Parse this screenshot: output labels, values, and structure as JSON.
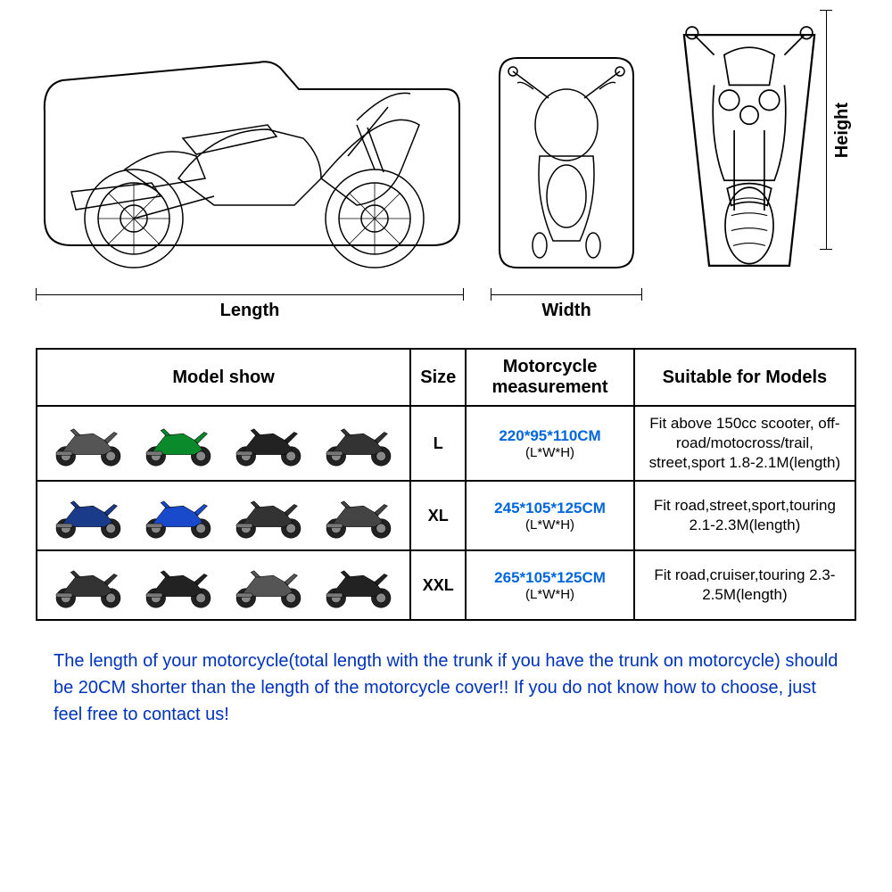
{
  "dimension_labels": {
    "length": "Length",
    "width": "Width",
    "height": "Height"
  },
  "table": {
    "headers": {
      "model": "Model show",
      "size": "Size",
      "measurement": "Motorcycle measurement",
      "suitable": "Suitable for Models"
    },
    "measurement_sub": "(L*W*H)",
    "rows": [
      {
        "size": "L",
        "measurement": "220*95*110CM",
        "suitable": "Fit above 150cc scooter, off-road/motocross/trail, street,sport 1.8-2.1M(length)",
        "bikes": [
          {
            "name": "scooter",
            "color": "#555"
          },
          {
            "name": "motocross",
            "color": "#0a8a2a"
          },
          {
            "name": "sport",
            "color": "#222"
          },
          {
            "name": "maxi-scooter",
            "color": "#333"
          }
        ]
      },
      {
        "size": "XL",
        "measurement": "245*105*125CM",
        "suitable": "Fit road,street,sport,touring 2.1-2.3M(length)",
        "bikes": [
          {
            "name": "adventure",
            "color": "#1a3a8a"
          },
          {
            "name": "sport-touring",
            "color": "#1a4acc"
          },
          {
            "name": "touring",
            "color": "#333"
          },
          {
            "name": "adv-touring",
            "color": "#444"
          }
        ]
      },
      {
        "size": "XXL",
        "measurement": "265*105*125CM",
        "suitable": "Fit road,cruiser,touring 2.3-2.5M(length)",
        "bikes": [
          {
            "name": "bagger",
            "color": "#333"
          },
          {
            "name": "cruiser",
            "color": "#222"
          },
          {
            "name": "power-cruiser",
            "color": "#555"
          },
          {
            "name": "classic-cruiser",
            "color": "#222"
          }
        ]
      }
    ]
  },
  "note": "The length of your motorcycle(total length with the trunk if you have the trunk on motorcycle) should be 20CM shorter than the length of the motorcycle cover!! If you do not know how to choose, just feel free to contact us!",
  "colors": {
    "link": "#0066dd",
    "note": "#0033bb",
    "border": "#000000",
    "bg": "#ffffff"
  }
}
